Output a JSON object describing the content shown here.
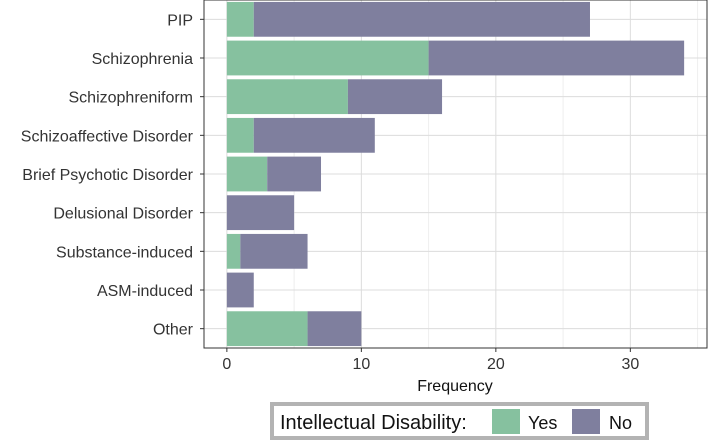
{
  "chart_data": {
    "type": "bar",
    "orientation": "horizontal",
    "stacked": true,
    "categories": [
      "PIP",
      "Schizophrenia",
      "Schizophreniform",
      "Schizoaffective Disorder",
      "Brief Psychotic Disorder",
      "Delusional Disorder",
      "Substance-induced",
      "ASM-induced",
      "Other"
    ],
    "series": [
      {
        "name": "Yes",
        "color": "#86c19f",
        "values": [
          2,
          15,
          9,
          2,
          3,
          0,
          1,
          0,
          6
        ]
      },
      {
        "name": "No",
        "color": "#7f7f9e",
        "values": [
          25,
          19,
          7,
          9,
          4,
          5,
          5,
          2,
          4
        ]
      }
    ],
    "x_ticks": [
      0,
      10,
      20,
      30
    ],
    "xlim": [
      -1.7,
      35.7
    ],
    "xlabel": "Frequency",
    "ylabel": "",
    "grid": true,
    "legend": {
      "title": "Intellectual Disability:",
      "position": "bottom"
    }
  }
}
